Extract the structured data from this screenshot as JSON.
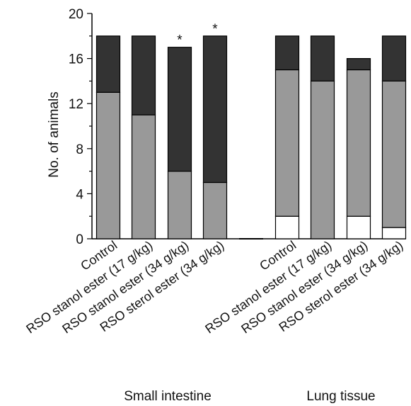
{
  "chart_data": {
    "type": "bar",
    "stacked": true,
    "ylabel": "No. of animals",
    "ylim": [
      0,
      20
    ],
    "yticks": [
      0,
      4,
      8,
      12,
      16,
      20
    ],
    "colors": {
      "white": "#ffffff",
      "grey": "#999999",
      "dark": "#333333"
    },
    "groups": [
      {
        "label": "Small intestine",
        "bars": [
          {
            "category": "Control",
            "segments": [
              0,
              13,
              5
            ],
            "marker": ""
          },
          {
            "category": "RSO stanol ester (17 g/kg)",
            "segments": [
              0,
              11,
              7
            ],
            "marker": ""
          },
          {
            "category": "RSO stanol ester (34 g/kg)",
            "segments": [
              0,
              6,
              11
            ],
            "marker": "*"
          },
          {
            "category": "RSO sterol ester (34 g/kg)",
            "segments": [
              0,
              5,
              13
            ],
            "marker": "*"
          }
        ]
      },
      {
        "label": "Lung tissue",
        "bars": [
          {
            "category": "Control",
            "segments": [
              2,
              13,
              3
            ],
            "marker": ""
          },
          {
            "category": "RSO stanol ester (17 g/kg)",
            "segments": [
              0,
              14,
              4
            ],
            "marker": ""
          },
          {
            "category": "RSO stanol ester (34 g/kg)",
            "segments": [
              2,
              13,
              1
            ],
            "marker": ""
          },
          {
            "category": "RSO sterol ester (34 g/kg)",
            "segments": [
              1,
              13,
              4
            ],
            "marker": ""
          }
        ]
      }
    ]
  }
}
